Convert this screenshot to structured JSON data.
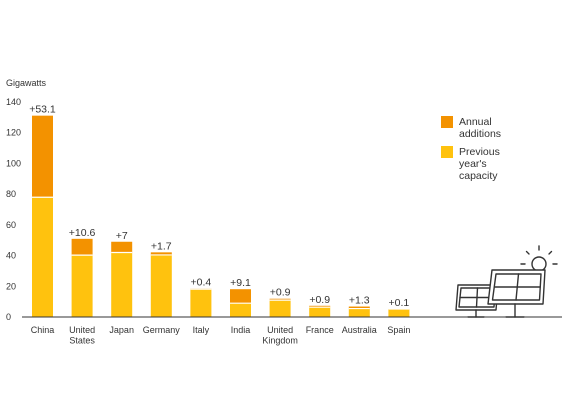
{
  "chart_data": {
    "type": "bar",
    "stacked": true,
    "ylabel": "Gigawatts",
    "ylim": [
      0,
      140
    ],
    "yticks": [
      0,
      20,
      40,
      60,
      80,
      100,
      120,
      140
    ],
    "grid": false,
    "legend_position": "right",
    "categories": [
      [
        "China"
      ],
      [
        "United",
        "States"
      ],
      [
        "Japan"
      ],
      [
        "Germany"
      ],
      [
        "Italy"
      ],
      [
        "India"
      ],
      [
        "United",
        "Kingdom"
      ],
      [
        "France"
      ],
      [
        "Australia"
      ],
      [
        "Spain"
      ]
    ],
    "series": [
      {
        "name": [
          "Previous",
          "year's",
          "capacity"
        ],
        "color": "#FFC20E",
        "values": [
          78,
          40.3,
          42,
          40.4,
          18.1,
          9,
          11,
          6.4,
          5.5,
          5.2
        ]
      },
      {
        "name": [
          "Annual",
          "additions"
        ],
        "color": "#F39200",
        "values": [
          53.1,
          10.6,
          7,
          1.7,
          0.4,
          9.1,
          0.9,
          0.9,
          1.3,
          0.1
        ]
      }
    ],
    "data_labels": [
      "+53.1",
      "+10.6",
      "+7",
      "+1.7",
      "+0.4",
      "+9.1",
      "+0.9",
      "+0.9",
      "+1.3",
      "+0.1"
    ]
  },
  "decoration": {
    "illustration": "solar-panels-with-sun-icon",
    "line_color": "#333333"
  }
}
